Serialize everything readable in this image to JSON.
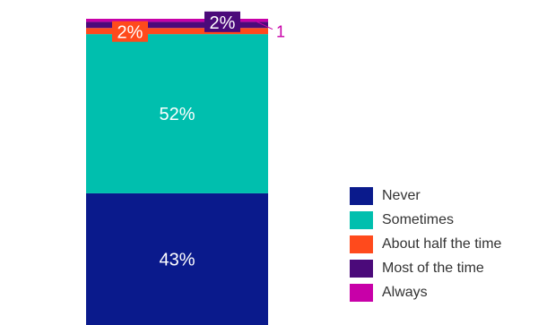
{
  "chart_data": {
    "type": "bar",
    "stacked": true,
    "categories": [
      ""
    ],
    "ylim": [
      0,
      100
    ],
    "series": [
      {
        "name": "Never",
        "values": [
          43
        ],
        "label": "43%",
        "color": "#0a1a8c"
      },
      {
        "name": "Sometimes",
        "values": [
          52
        ],
        "label": "52%",
        "color": "#00bfae"
      },
      {
        "name": "About half the time",
        "values": [
          2
        ],
        "label": "2%",
        "color": "#ff4a1c"
      },
      {
        "name": "Most of the time",
        "values": [
          2
        ],
        "label": "2%",
        "color": "#4b0a7a"
      },
      {
        "name": "Always",
        "values": [
          1
        ],
        "label": "1",
        "color": "#c800a8"
      }
    ],
    "legend_position": "right"
  }
}
